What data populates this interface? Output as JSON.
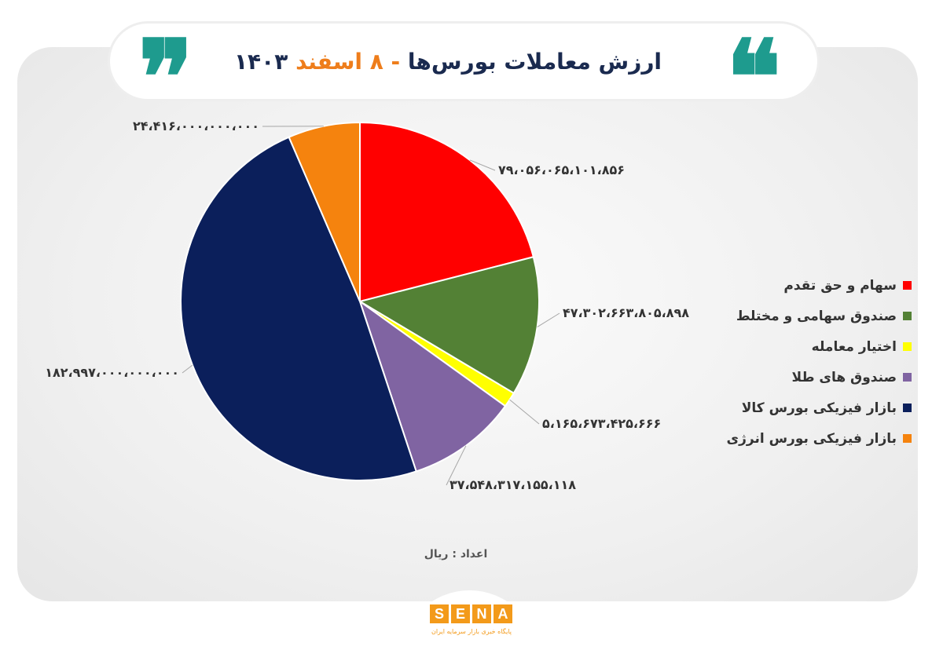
{
  "header": {
    "title_main": "ارزش معاملات بورس‌ها",
    "title_dash": "-",
    "title_day": "۸",
    "title_month": "اسفند",
    "title_year": "۱۴۰۳",
    "quote_open": "❞",
    "quote_close": "❝"
  },
  "chart_data": {
    "type": "pie",
    "series": [
      {
        "name": "سهام و حق تقدم",
        "value": 79056065101856,
        "label": "۷۹،۰۵۶،۰۶۵،۱۰۱،۸۵۶",
        "color": "#ff0000"
      },
      {
        "name": "صندوق سهامی و مختلط",
        "value": 47302663805898,
        "label": "۴۷،۳۰۲،۶۶۳،۸۰۵،۸۹۸",
        "color": "#538135"
      },
      {
        "name": "اختیار معامله",
        "value": 5165673425666,
        "label": "۵،۱۶۵،۶۷۳،۴۲۵،۶۶۶",
        "color": "#ffff00"
      },
      {
        "name": "صندوق های طلا",
        "value": 37548317155118,
        "label": "۳۷،۵۴۸،۳۱۷،۱۵۵،۱۱۸",
        "color": "#8064a2"
      },
      {
        "name": "بازار فیزیکی بورس کالا",
        "value": 182997000000000,
        "label": "۱۸۲،۹۹۷،۰۰۰،۰۰۰،۰۰۰",
        "color": "#0b1f5b"
      },
      {
        "name": "بازار فیزیکی بورس انرژی",
        "value": 24416000000000,
        "label": "۲۴،۴۱۶،۰۰۰،۰۰۰،۰۰۰",
        "color": "#f5830e"
      }
    ],
    "unit_note": "اعداد : ریال",
    "legend_position": "right"
  },
  "footer": {
    "logo_letters": [
      "S",
      "E",
      "N",
      "A"
    ],
    "logo_subtitle": "پایگاه خبری بازار سرمایه ایران"
  }
}
